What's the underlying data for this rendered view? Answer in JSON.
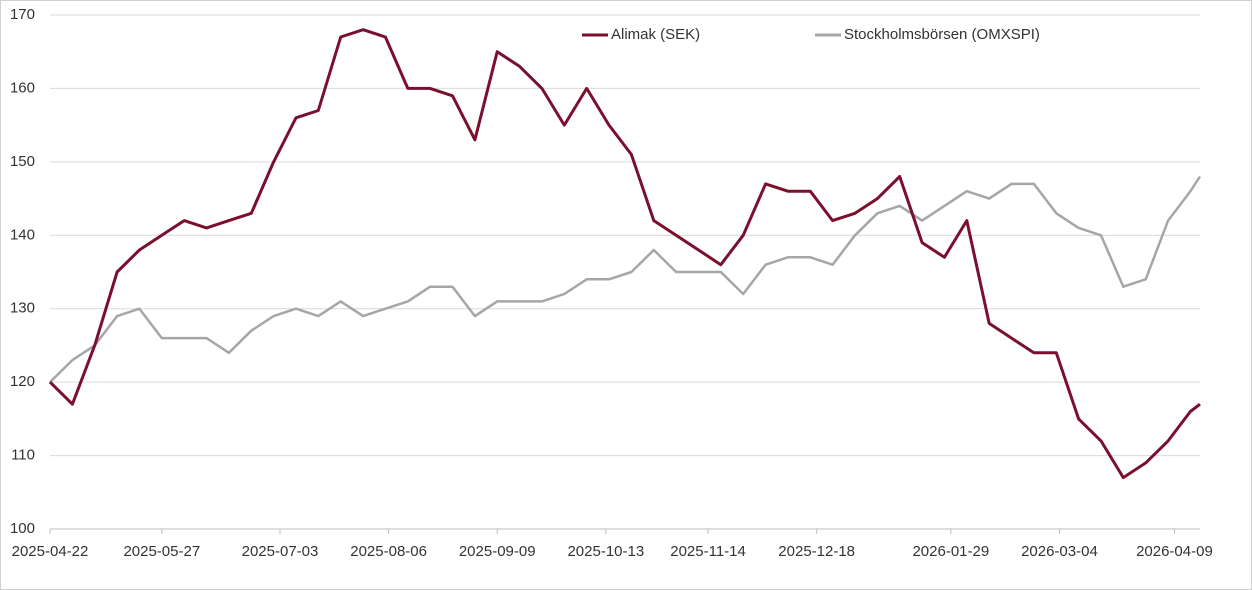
{
  "chart_data": {
    "type": "line",
    "x": [
      "2025-04-22",
      "2025-04-29",
      "2025-05-06",
      "2025-05-13",
      "2025-05-20",
      "2025-05-27",
      "2025-06-03",
      "2025-06-10",
      "2025-06-17",
      "2025-06-24",
      "2025-07-01",
      "2025-07-08",
      "2025-07-15",
      "2025-07-22",
      "2025-07-29",
      "2025-08-05",
      "2025-08-12",
      "2025-08-19",
      "2025-08-26",
      "2025-09-02",
      "2025-09-09",
      "2025-09-16",
      "2025-09-23",
      "2025-09-30",
      "2025-10-07",
      "2025-10-14",
      "2025-10-21",
      "2025-10-28",
      "2025-11-04",
      "2025-11-11",
      "2025-11-18",
      "2025-11-25",
      "2025-12-02",
      "2025-12-09",
      "2025-12-16",
      "2025-12-23",
      "2025-12-30",
      "2026-01-06",
      "2026-01-13",
      "2026-01-20",
      "2026-01-27",
      "2026-02-03",
      "2026-02-10",
      "2026-02-17",
      "2026-02-24",
      "2026-03-03",
      "2026-03-10",
      "2026-03-17",
      "2026-03-24",
      "2026-03-31",
      "2026-04-07",
      "2026-04-14",
      "2026-04-17"
    ],
    "series": [
      {
        "name": "Alimak (SEK)",
        "color": "#7a0f2e",
        "values": [
          120,
          117,
          125,
          135,
          138,
          140,
          142,
          141,
          142,
          143,
          150,
          156,
          157,
          167,
          168,
          167,
          160,
          160,
          159,
          153,
          165,
          163,
          160,
          155,
          160,
          155,
          151,
          142,
          140,
          138,
          136,
          140,
          147,
          146,
          146,
          142,
          143,
          145,
          148,
          139,
          137,
          142,
          128,
          126,
          124,
          124,
          115,
          112,
          107,
          109,
          112,
          116,
          117
        ]
      },
      {
        "name": "Stockholmsbörsen (OMXSPI)",
        "color": "#a6a6a6",
        "values": [
          120,
          123,
          125,
          129,
          130,
          126,
          126,
          126,
          124,
          127,
          129,
          130,
          129,
          131,
          129,
          130,
          131,
          133,
          133,
          129,
          131,
          131,
          131,
          132,
          134,
          134,
          135,
          138,
          135,
          135,
          135,
          132,
          136,
          137,
          137,
          136,
          140,
          143,
          144,
          142,
          144,
          146,
          145,
          147,
          147,
          143,
          141,
          140,
          133,
          134,
          142,
          146,
          148
        ]
      }
    ],
    "xlim": [
      "2025-04-22",
      "2026-04-17"
    ],
    "xticks": [
      "2025-04-22",
      "2025-05-27",
      "2025-07-03",
      "2025-08-06",
      "2025-09-09",
      "2025-10-13",
      "2025-11-14",
      "2025-12-18",
      "2026-01-29",
      "2026-03-04",
      "2026-04-09"
    ],
    "ylim": [
      100,
      170
    ],
    "yticks": [
      100,
      110,
      120,
      130,
      140,
      150,
      160,
      170
    ],
    "grid": true,
    "legend": "top"
  }
}
